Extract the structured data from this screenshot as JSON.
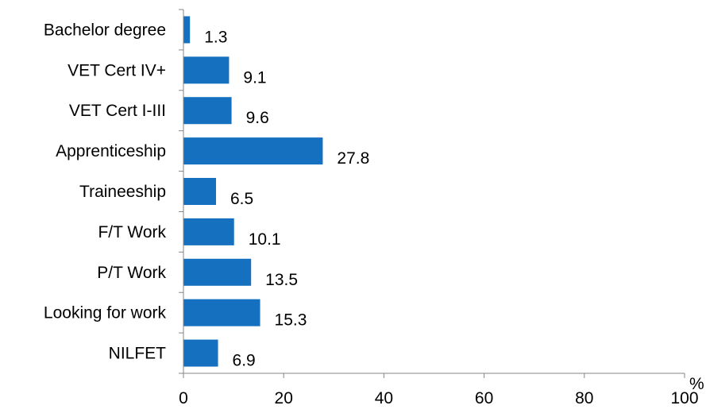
{
  "chart_data": {
    "type": "bar",
    "orientation": "horizontal",
    "categories": [
      "Bachelor degree",
      "VET Cert IV+",
      "VET Cert I-III",
      "Apprenticeship",
      "Traineeship",
      "F/T Work",
      "P/T Work",
      "Looking for work",
      "NILFET"
    ],
    "values": [
      1.3,
      9.1,
      9.6,
      27.8,
      6.5,
      10.1,
      13.5,
      15.3,
      6.9
    ],
    "value_labels": [
      "1.3",
      "9.1",
      "9.6",
      "27.8",
      "6.5",
      "10.1",
      "13.5",
      "15.3",
      "6.9"
    ],
    "title": "",
    "xlabel": "",
    "ylabel": "",
    "x_unit": "%",
    "xlim": [
      0,
      100
    ],
    "x_ticks": [
      0,
      20,
      40,
      60,
      80,
      100
    ],
    "x_tick_labels": [
      "0",
      "20",
      "40",
      "60",
      "80",
      "100"
    ],
    "bar_color": "#1570C0",
    "grid": false,
    "legend": "none"
  }
}
